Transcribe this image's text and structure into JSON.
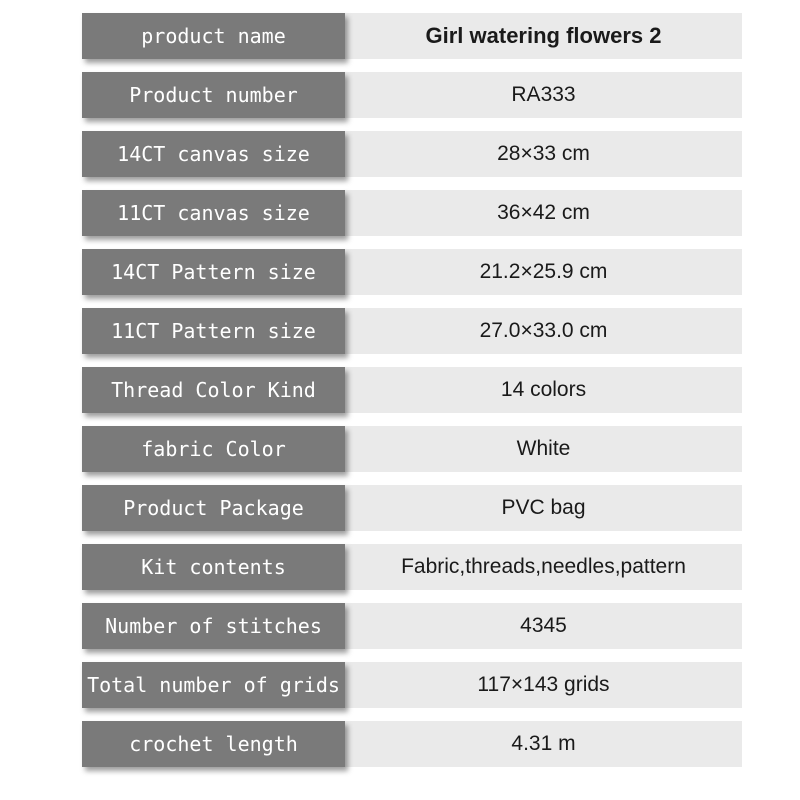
{
  "colors": {
    "label_background": "#7a7a7a",
    "label_text": "#ffffff",
    "value_background": "#eaeaea",
    "value_text": "#1a1a1a",
    "page_background": "#ffffff"
  },
  "table": {
    "rows": [
      {
        "label": "product name",
        "value": "Girl watering flowers 2"
      },
      {
        "label": "Product number",
        "value": "RA333"
      },
      {
        "label": "14CT canvas size",
        "value": "28×33 cm"
      },
      {
        "label": "11CT canvas size",
        "value": "36×42 cm"
      },
      {
        "label": "14CT Pattern size",
        "value": "21.2×25.9 cm"
      },
      {
        "label": "11CT Pattern size",
        "value": "27.0×33.0 cm"
      },
      {
        "label": "Thread Color Kind",
        "value": "14 colors"
      },
      {
        "label": "fabric Color",
        "value": "White"
      },
      {
        "label": "Product Package",
        "value": "PVC bag"
      },
      {
        "label": "Kit contents",
        "value": "Fabric,threads,needles,pattern"
      },
      {
        "label": "Number of stitches",
        "value": "4345"
      },
      {
        "label": "Total number of grids",
        "value": "117×143 grids"
      },
      {
        "label": "crochet length",
        "value": "4.31 m"
      }
    ]
  }
}
